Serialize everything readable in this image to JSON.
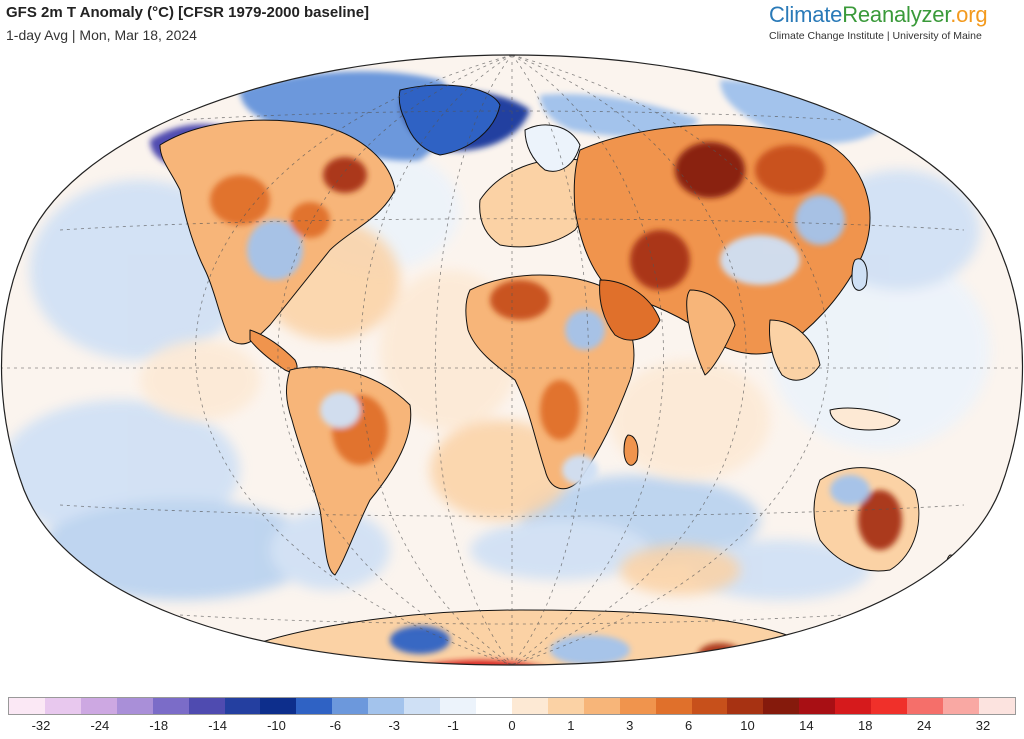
{
  "header": {
    "title": "GFS 2m T Anomaly (°C) [CFSR 1979-2000 baseline]",
    "subtitle": "1-day Avg | Mon, Mar 18, 2024"
  },
  "brand": {
    "part1": "Climate",
    "part2": "Reanalyzer",
    "part3": ".org",
    "tagline": "Climate Change Institute | University of Maine",
    "colors": {
      "climate": "#2a7ab8",
      "reanalyzer": "#3a9a3a",
      "org": "#f39a1e"
    }
  },
  "legend": {
    "labels": [
      "-32",
      "-24",
      "-18",
      "-14",
      "-10",
      "-6",
      "-3",
      "-1",
      "0",
      "1",
      "3",
      "6",
      "10",
      "14",
      "18",
      "24",
      "32"
    ],
    "colors": [
      "#fbe8f5",
      "#e8c8ee",
      "#cda8e2",
      "#a98fd8",
      "#7b6cc8",
      "#4f4bb0",
      "#243fa0",
      "#0d2e8c",
      "#2f62c4",
      "#6c98dc",
      "#a3c3ec",
      "#cfe0f5",
      "#ecf3fb",
      "#ffffff",
      "#fde9d4",
      "#fbd2a5",
      "#f7b579",
      "#f0944d",
      "#e0702b",
      "#c7501b",
      "#a73212",
      "#851a0c",
      "#a80f14",
      "#d61a1c",
      "#f0302a",
      "#f56f6a",
      "#f9a8a3",
      "#fce3df"
    ]
  },
  "map": {
    "projection": "Winkel Tripel",
    "ocean_base": "#fbf4ee",
    "graticule": "dashed"
  }
}
